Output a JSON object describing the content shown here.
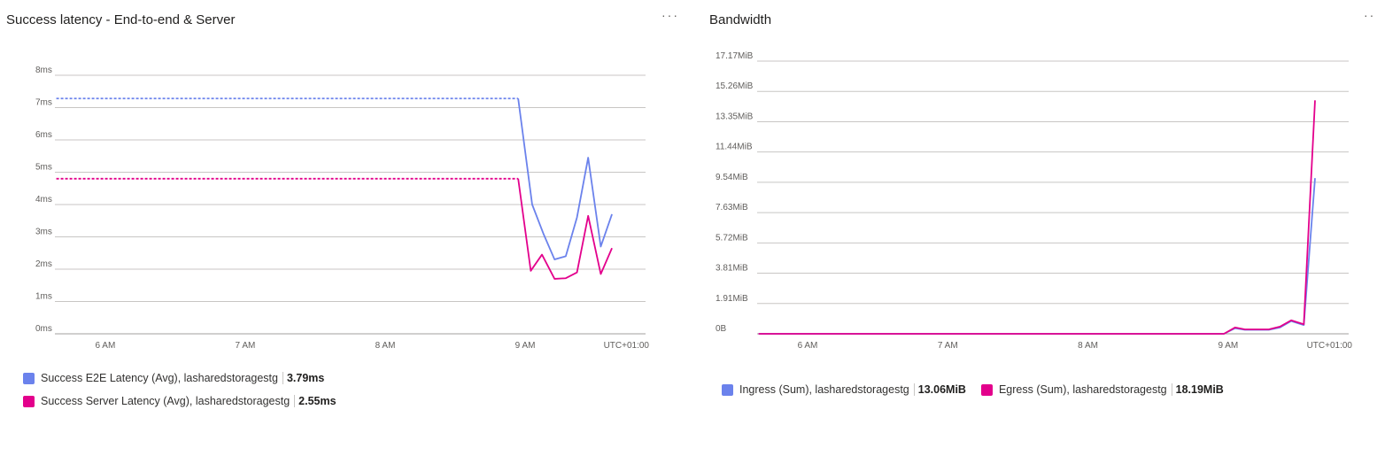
{
  "chart_data": [
    {
      "type": "line",
      "title": "Success latency - End-to-end & Server",
      "y_ticks": [
        "0ms",
        "1ms",
        "2ms",
        "3ms",
        "4ms",
        "5ms",
        "6ms",
        "7ms",
        "8ms"
      ],
      "ylim": [
        0,
        8
      ],
      "x_ticks": [
        "6 AM",
        "7 AM",
        "8 AM",
        "9 AM"
      ],
      "timezone_label": "UTC+01:00",
      "x_range_hours": [
        5.64,
        9.86
      ],
      "grid": true,
      "legend_position": "bottom",
      "series": [
        {
          "name": "Success E2E Latency (Avg), lasharedstoragestg",
          "summary": "3.79ms",
          "color": "#6b82ec",
          "dashed_until": 9.0,
          "x": [
            5.65,
            8.95,
            9.05,
            9.13,
            9.21,
            9.29,
            9.37,
            9.45,
            9.54,
            9.62
          ],
          "y": [
            7.28,
            7.28,
            4.0,
            3.1,
            2.3,
            2.4,
            3.6,
            5.45,
            2.7,
            3.7
          ]
        },
        {
          "name": "Success Server Latency (Avg), lasharedstoragestg",
          "summary": "2.55ms",
          "color": "#e3008c",
          "dashed_until": 9.0,
          "x": [
            5.65,
            8.95,
            9.04,
            9.12,
            9.21,
            9.29,
            9.37,
            9.45,
            9.54,
            9.62
          ],
          "y": [
            4.8,
            4.8,
            1.95,
            2.45,
            1.7,
            1.72,
            1.9,
            3.65,
            1.85,
            2.65
          ]
        }
      ]
    },
    {
      "type": "line",
      "title": "Bandwidth",
      "y_ticks": [
        "0B",
        "1.91MiB",
        "3.81MiB",
        "5.72MiB",
        "7.63MiB",
        "9.54MiB",
        "11.44MiB",
        "13.35MiB",
        "15.26MiB",
        "17.17MiB"
      ],
      "ylim": [
        0,
        17.17
      ],
      "x_ticks": [
        "6 AM",
        "7 AM",
        "8 AM",
        "9 AM"
      ],
      "timezone_label": "UTC+01:00",
      "x_range_hours": [
        5.64,
        9.86
      ],
      "grid": true,
      "legend_position": "bottom",
      "series": [
        {
          "name": "Ingress (Sum), lasharedstoragestg",
          "summary": "13.06MiB",
          "color": "#6b82ec",
          "x": [
            5.65,
            8.97,
            9.05,
            9.12,
            9.2,
            9.29,
            9.37,
            9.45,
            9.54,
            9.62
          ],
          "y": [
            0,
            0,
            0.35,
            0.25,
            0.25,
            0.25,
            0.4,
            0.8,
            0.55,
            9.8
          ]
        },
        {
          "name": "Egress (Sum), lasharedstoragestg",
          "summary": "18.19MiB",
          "color": "#e3008c",
          "x": [
            5.65,
            8.97,
            9.05,
            9.12,
            9.2,
            9.29,
            9.37,
            9.45,
            9.54,
            9.62
          ],
          "y": [
            0,
            0,
            0.4,
            0.28,
            0.28,
            0.28,
            0.45,
            0.85,
            0.6,
            14.7
          ]
        }
      ]
    }
  ]
}
